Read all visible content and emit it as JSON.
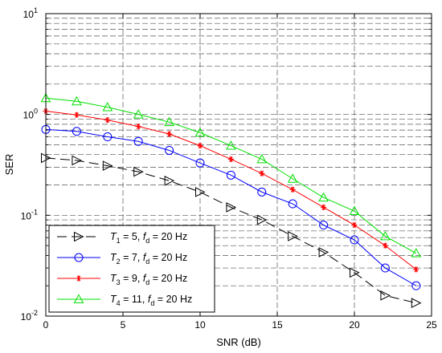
{
  "chart_data": {
    "type": "line",
    "xlabel": "SNR (dB)",
    "ylabel": "SER",
    "xlim": [
      0,
      25
    ],
    "ylim": [
      0.01,
      10
    ],
    "yscale": "log",
    "x_ticks": [
      "0",
      "5",
      "10",
      "15",
      "20",
      "25"
    ],
    "y_ticks": [
      {
        "base": "10",
        "exp": "-2"
      },
      {
        "base": "10",
        "exp": "-1"
      },
      {
        "base": "10",
        "exp": "0"
      },
      {
        "base": "10",
        "exp": "1"
      }
    ],
    "grid": true,
    "legend_position": "bottom-left",
    "x": [
      0,
      2,
      4,
      6,
      8,
      10,
      12,
      14,
      16,
      18,
      20,
      22,
      24
    ],
    "series": [
      {
        "name": "T1 = 5, fd = 20 Hz",
        "legend": {
          "v1": "T",
          "s1": "1",
          "mid": " = 5, ",
          "v2": "f",
          "s2": "d",
          "tail": " = 20 Hz"
        },
        "color": "#000000",
        "marker": "triangle-right",
        "dash": "12,6",
        "values": [
          0.37,
          0.35,
          0.31,
          0.27,
          0.22,
          0.17,
          0.12,
          0.09,
          0.062,
          0.043,
          0.027,
          0.016,
          0.0135
        ]
      },
      {
        "name": "T2 = 7, fd = 20 Hz",
        "legend": {
          "v1": "T",
          "s1": "2",
          "mid": " = 7, ",
          "v2": "f",
          "s2": "d",
          "tail": " = 20 Hz"
        },
        "color": "#0000ff",
        "marker": "circle",
        "dash": "",
        "values": [
          0.71,
          0.68,
          0.6,
          0.54,
          0.44,
          0.33,
          0.25,
          0.17,
          0.13,
          0.08,
          0.057,
          0.03,
          0.02
        ]
      },
      {
        "name": "T3 = 9, fd = 20 Hz",
        "legend": {
          "v1": "T",
          "s1": "3",
          "mid": " = 9, ",
          "v2": "f",
          "s2": "d",
          "tail": " = 20 Hz"
        },
        "color": "#ff0000",
        "marker": "star",
        "dash": "",
        "values": [
          1.08,
          0.99,
          0.88,
          0.76,
          0.64,
          0.49,
          0.36,
          0.26,
          0.18,
          0.12,
          0.08,
          0.05,
          0.029
        ]
      },
      {
        "name": "T4 = 11, fd = 20 Hz",
        "legend": {
          "v1": "T",
          "s1": "4",
          "mid": " = 11, ",
          "v2": "f",
          "s2": "d",
          "tail": " = 20 Hz"
        },
        "color": "#00e000",
        "marker": "triangle-up",
        "dash": "",
        "values": [
          1.45,
          1.35,
          1.18,
          1.0,
          0.84,
          0.66,
          0.49,
          0.36,
          0.23,
          0.15,
          0.11,
          0.062,
          0.042
        ]
      }
    ]
  }
}
